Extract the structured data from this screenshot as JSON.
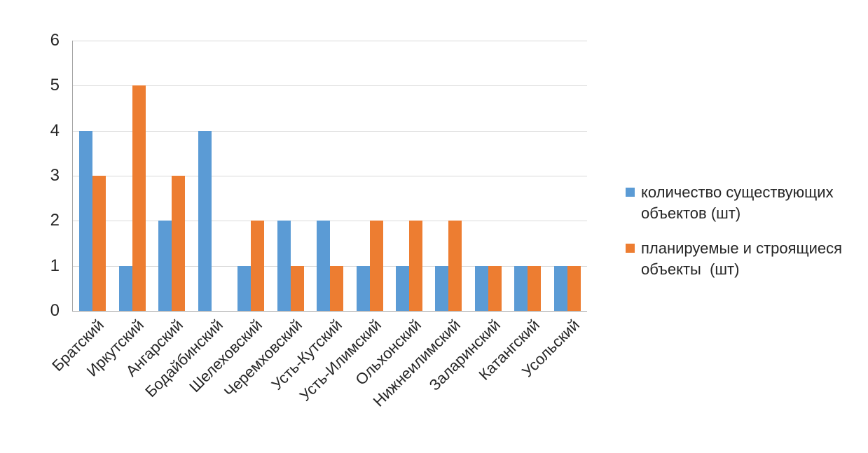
{
  "chart_data": {
    "type": "bar",
    "categories": [
      "Братский",
      "Иркутский",
      "Ангарский",
      "Бодайбинский",
      "Шелеховский",
      "Черемховский",
      "Усть-Кутский",
      "Усть-Илимский",
      "Ольхонский",
      "Нижнеилимский",
      "Заларинский",
      "Катангский",
      "Усольский"
    ],
    "series": [
      {
        "name": "количество существующих объектов (шт)",
        "color": "#5B9BD5",
        "values": [
          4,
          1,
          2,
          4,
          1,
          2,
          2,
          1,
          1,
          1,
          1,
          1,
          1
        ]
      },
      {
        "name": "планируемые и строящиеся объекты  (шт)",
        "color": "#ED7D31",
        "values": [
          3,
          5,
          3,
          0,
          2,
          1,
          1,
          2,
          2,
          2,
          1,
          1,
          1
        ]
      }
    ],
    "title": "",
    "xlabel": "",
    "ylabel": "",
    "ylim": [
      0,
      6
    ],
    "yticks": [
      0,
      1,
      2,
      3,
      4,
      5,
      6
    ],
    "grid": "horizontal",
    "gridline_color": "#d9d9d9",
    "axis_line_color": "#a6a6a6",
    "legend_position": "right",
    "x_label_rotation_deg": 45
  }
}
